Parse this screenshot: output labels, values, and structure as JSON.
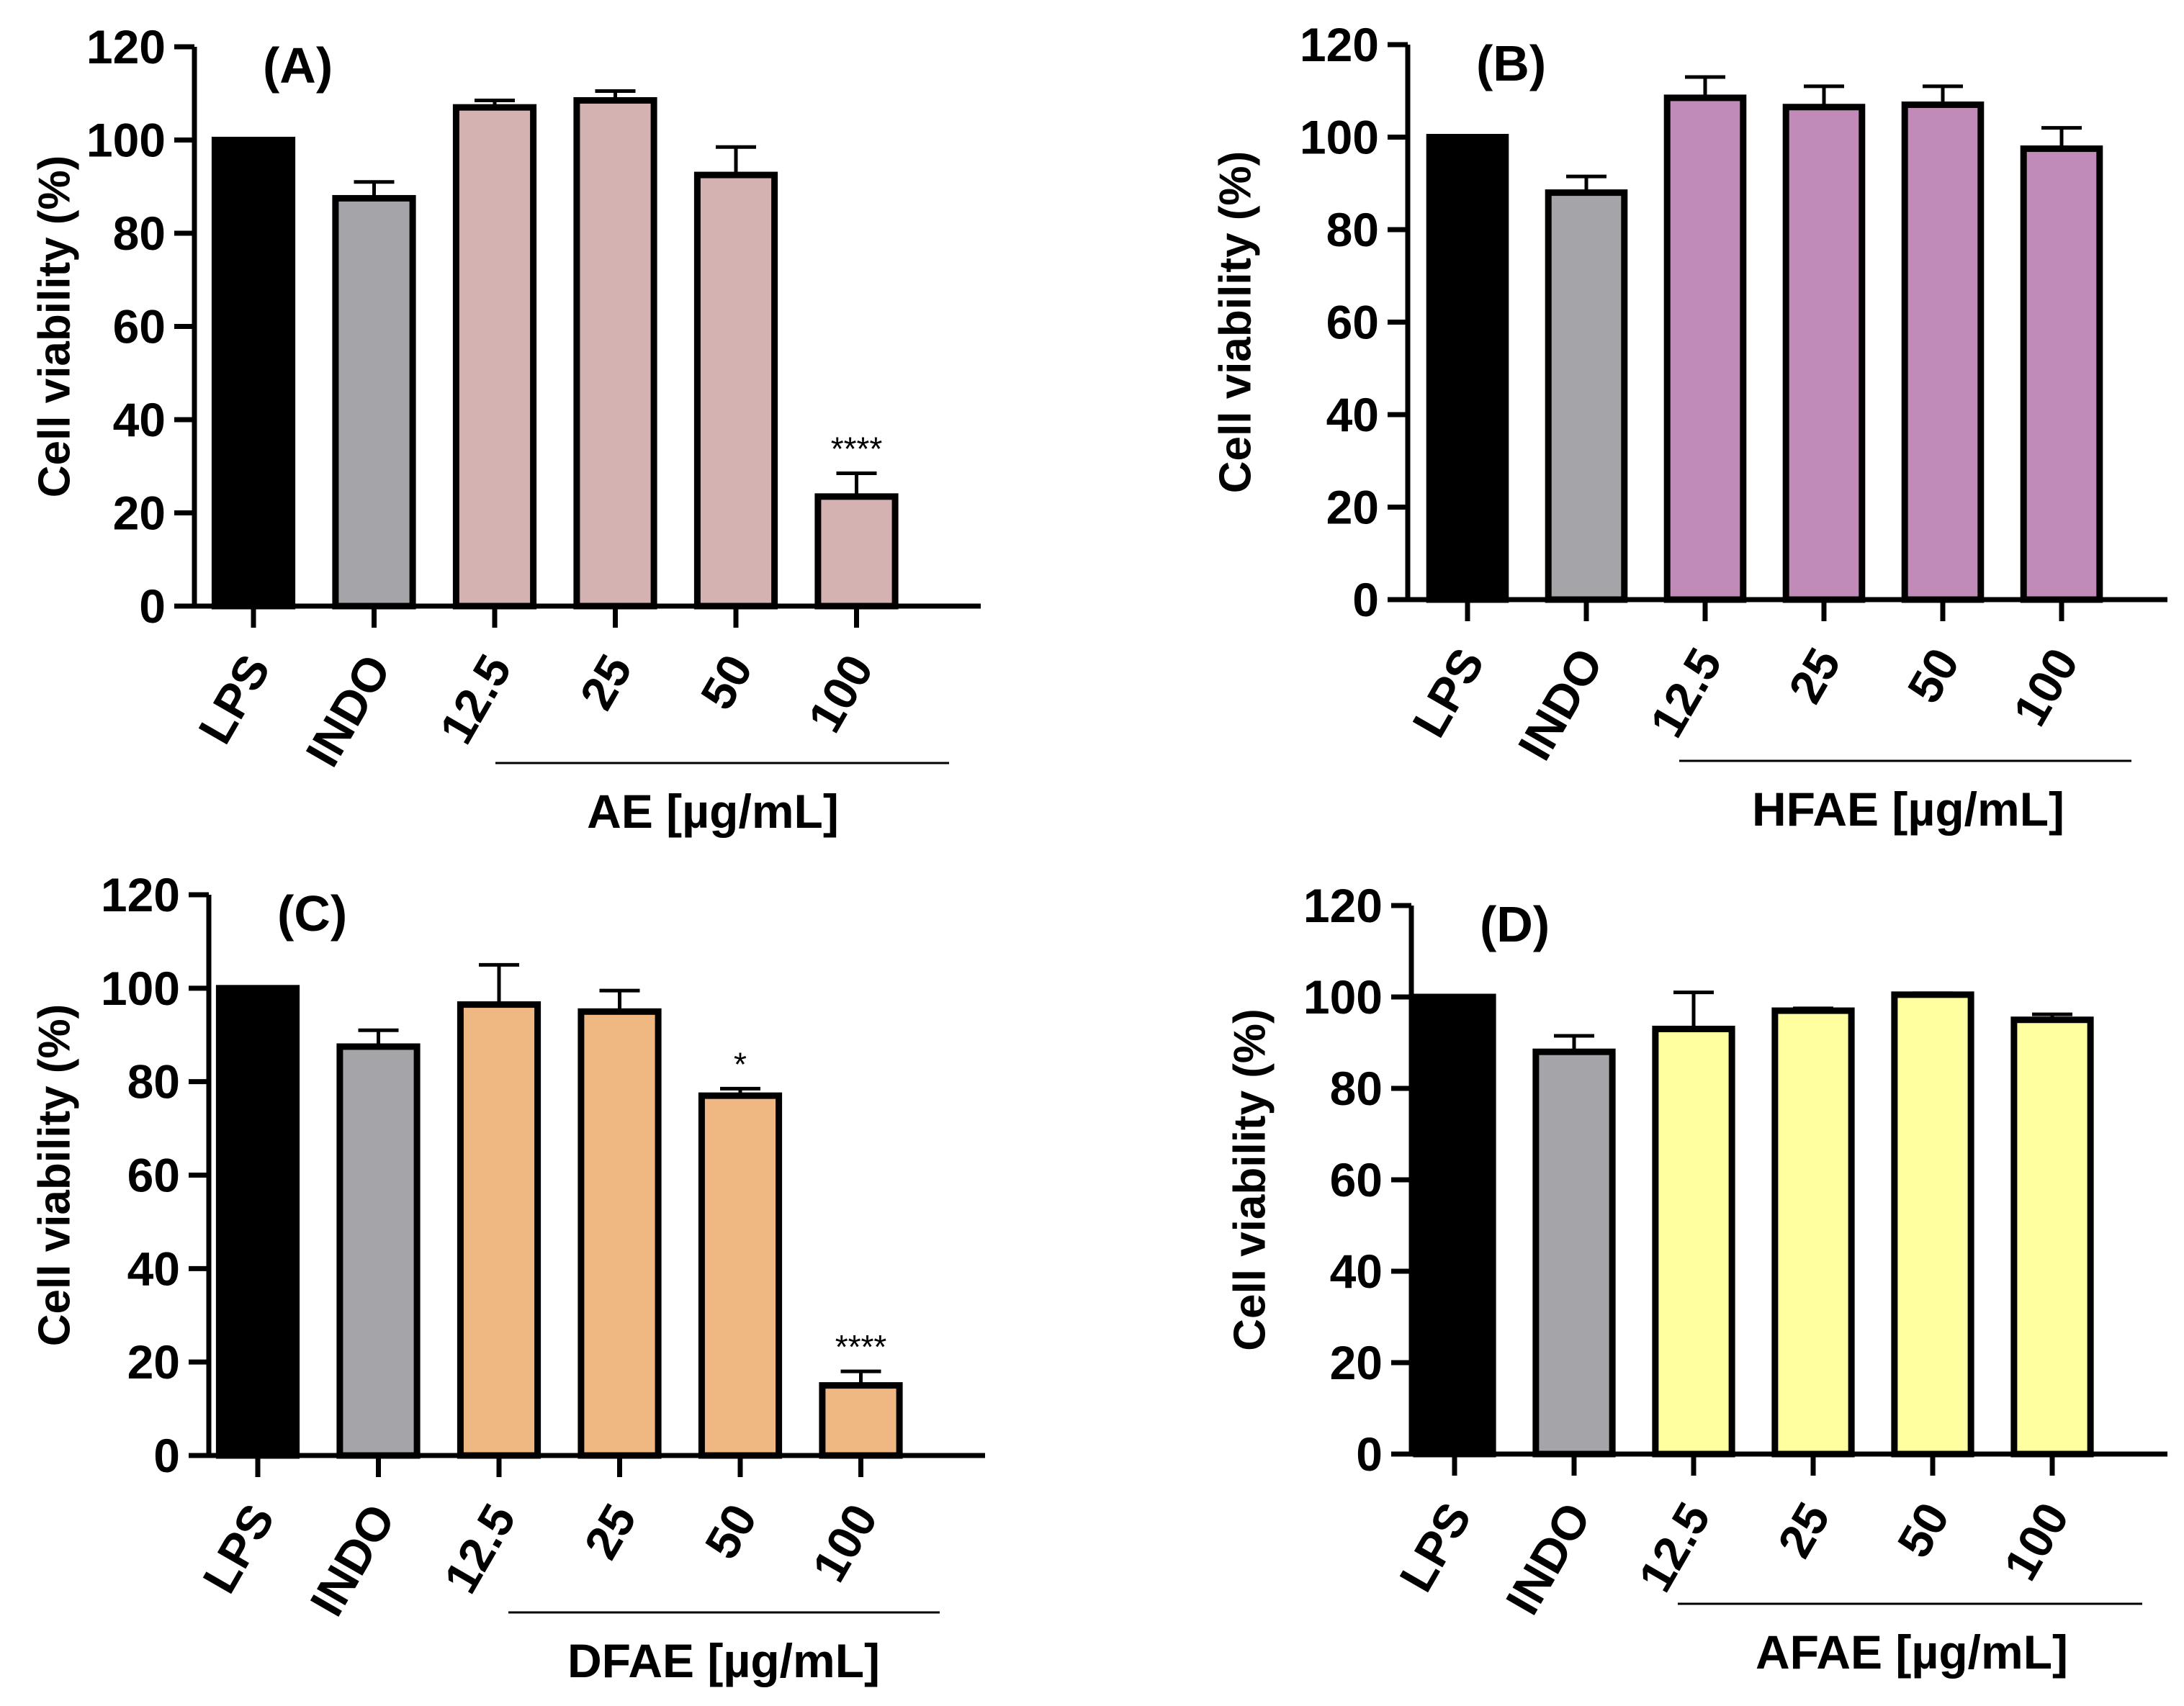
{
  "figure": {
    "panels": [
      {
        "id": "A",
        "bar_color": "#D4B2B1"
      },
      {
        "id": "B",
        "bar_color": "#C08BB7"
      },
      {
        "id": "C",
        "bar_color": "#EFB882"
      },
      {
        "id": "D",
        "bar_color": "#FFFFA0"
      }
    ]
  },
  "chart_data": [
    {
      "type": "bar",
      "panel_label": "(A)",
      "ylabel": "Cell viability (%)",
      "group_label": "AE [µg/mL]",
      "categories": [
        "LPS",
        "INDO",
        "12.5",
        "25",
        "50",
        "100"
      ],
      "values": [
        100,
        87.5,
        107,
        108.5,
        92.5,
        23.5
      ],
      "errors": [
        0,
        3.5,
        1.5,
        2,
        6,
        5
      ],
      "significance": [
        "",
        "",
        "",
        "",
        "",
        "****"
      ],
      "colors": [
        "#000000",
        "#A5A4A9",
        "#D4B2B1",
        "#D4B2B1",
        "#D4B2B1",
        "#D4B2B1"
      ],
      "yticks": [
        0,
        20,
        40,
        60,
        80,
        100,
        120
      ],
      "ylim": [
        0,
        120
      ]
    },
    {
      "type": "bar",
      "panel_label": "(B)",
      "ylabel": "Cell viability (%)",
      "group_label": "HFAE [µg/mL]",
      "categories": [
        "LPS",
        "INDO",
        "12.5",
        "25",
        "50",
        "100"
      ],
      "values": [
        100,
        88,
        108.5,
        106.5,
        107,
        97.5
      ],
      "errors": [
        0,
        3.5,
        4.5,
        4.5,
        4,
        4.5
      ],
      "significance": [
        "",
        "",
        "",
        "",
        "",
        ""
      ],
      "colors": [
        "#000000",
        "#A5A4A9",
        "#C08BB7",
        "#C08BB7",
        "#C08BB7",
        "#C08BB7"
      ],
      "yticks": [
        0,
        20,
        40,
        60,
        80,
        100,
        120
      ],
      "ylim": [
        0,
        120
      ]
    },
    {
      "type": "bar",
      "panel_label": "(C)",
      "ylabel": "Cell viability (%)",
      "group_label": "DFAE [µg/mL]",
      "categories": [
        "LPS",
        "INDO",
        "12.5",
        "25",
        "50",
        "100"
      ],
      "values": [
        100,
        87.5,
        96.5,
        95,
        77,
        15
      ],
      "errors": [
        0,
        3.5,
        8.5,
        4.5,
        1.5,
        3
      ],
      "significance": [
        "",
        "",
        "",
        "",
        "*",
        "****"
      ],
      "colors": [
        "#000000",
        "#A5A4A9",
        "#EFB882",
        "#EFB882",
        "#EFB882",
        "#EFB882"
      ],
      "yticks": [
        0,
        20,
        40,
        60,
        80,
        100,
        120
      ],
      "ylim": [
        0,
        120
      ]
    },
    {
      "type": "bar",
      "panel_label": "(D)",
      "ylabel": "Cell viability (%)",
      "group_label": "AFAE [µg/mL]",
      "categories": [
        "LPS",
        "INDO",
        "12.5",
        "25",
        "50",
        "100"
      ],
      "values": [
        100,
        88,
        93,
        97,
        100.5,
        95
      ],
      "errors": [
        0,
        3.5,
        8,
        0.5,
        0.3,
        1.2
      ],
      "significance": [
        "",
        "",
        "",
        "",
        "",
        ""
      ],
      "colors": [
        "#000000",
        "#A5A4A9",
        "#FFFFA0",
        "#FFFFA0",
        "#FFFFA0",
        "#FFFFA0"
      ],
      "yticks": [
        0,
        20,
        40,
        60,
        80,
        100,
        120
      ],
      "ylim": [
        0,
        120
      ]
    }
  ]
}
